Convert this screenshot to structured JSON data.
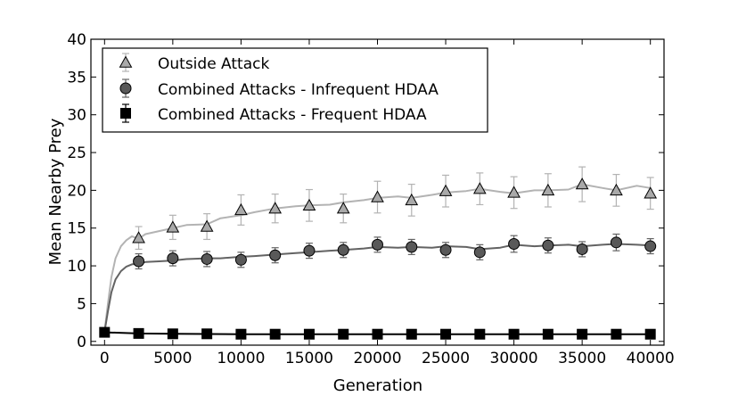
{
  "chart_data": {
    "type": "line",
    "xlabel": "Generation",
    "ylabel": "Mean Nearby Prey",
    "xlim": [
      -1000,
      41000
    ],
    "ylim": [
      -0.5,
      40
    ],
    "x_ticks": [
      0,
      5000,
      10000,
      15000,
      20000,
      25000,
      30000,
      35000,
      40000
    ],
    "y_ticks": [
      0,
      5,
      10,
      15,
      20,
      25,
      30,
      35,
      40
    ],
    "grid": false,
    "legend_position": "top-left",
    "series": [
      {
        "name": "Outside Attack",
        "marker": "triangle",
        "marker_color": "#a9a9a9",
        "line_color": "#b3b3b3",
        "curve": {
          "x": [
            0,
            250,
            500,
            800,
            1200,
            1600,
            2000,
            2500,
            3000,
            4000,
            5000,
            6000,
            7500,
            8500,
            10000,
            11000,
            12500,
            14000,
            15000,
            16500,
            17500,
            19000,
            20000,
            21500,
            22500,
            24000,
            25000,
            26500,
            27500,
            29000,
            30000,
            31500,
            32500,
            34000,
            35000,
            36500,
            37500,
            39000,
            40000
          ],
          "y": [
            1.3,
            5.0,
            8.5,
            11.0,
            12.6,
            13.4,
            13.9,
            13.6,
            14.2,
            14.6,
            15.0,
            15.4,
            15.5,
            16.3,
            16.7,
            17.1,
            17.6,
            17.9,
            18.0,
            18.1,
            18.4,
            18.7,
            19.0,
            19.2,
            19.0,
            19.4,
            19.7,
            19.9,
            20.2,
            19.8,
            19.6,
            20.0,
            20.0,
            20.1,
            20.8,
            20.3,
            20.0,
            20.6,
            20.3
          ]
        },
        "points": {
          "x": [
            2500,
            5000,
            7500,
            10000,
            12500,
            15000,
            17500,
            20000,
            22500,
            25000,
            27500,
            30000,
            32500,
            35000,
            37500,
            40000
          ],
          "y": [
            13.7,
            15.1,
            15.2,
            17.4,
            17.6,
            18.0,
            17.6,
            19.1,
            18.7,
            19.9,
            20.2,
            19.7,
            20.0,
            20.8,
            20.0,
            19.6
          ],
          "err": [
            1.5,
            1.6,
            1.7,
            2.0,
            1.9,
            2.1,
            1.9,
            2.1,
            2.1,
            2.1,
            2.1,
            2.1,
            2.2,
            2.3,
            2.1,
            2.1
          ]
        }
      },
      {
        "name": "Combined Attacks - Infrequent HDAA",
        "marker": "circle",
        "marker_color": "#595959",
        "line_color": "#636363",
        "curve": {
          "x": [
            0,
            250,
            500,
            800,
            1200,
            1600,
            2000,
            2500,
            3000,
            4000,
            5000,
            6000,
            7500,
            8500,
            10000,
            11000,
            12500,
            14000,
            15000,
            16500,
            17500,
            19000,
            20000,
            21500,
            22500,
            24000,
            25000,
            26500,
            27500,
            29000,
            30000,
            31500,
            32500,
            34000,
            35000,
            36500,
            37500,
            39000,
            40000
          ],
          "y": [
            1.3,
            4.0,
            6.5,
            8.2,
            9.3,
            9.9,
            10.2,
            10.3,
            10.5,
            10.6,
            10.7,
            10.9,
            11.0,
            11.0,
            11.2,
            11.3,
            11.5,
            11.7,
            11.8,
            12.0,
            12.1,
            12.3,
            12.5,
            12.4,
            12.5,
            12.4,
            12.6,
            12.5,
            12.2,
            12.4,
            12.8,
            12.6,
            12.7,
            12.8,
            12.6,
            12.8,
            12.9,
            12.8,
            12.7
          ]
        },
        "points": {
          "x": [
            2500,
            5000,
            7500,
            10000,
            12500,
            15000,
            17500,
            20000,
            22500,
            25000,
            27500,
            30000,
            32500,
            35000,
            37500,
            40000
          ],
          "y": [
            10.6,
            11.0,
            10.9,
            10.8,
            11.4,
            12.0,
            12.1,
            12.8,
            12.5,
            12.1,
            11.8,
            12.9,
            12.7,
            12.2,
            13.1,
            12.6
          ],
          "err": [
            1.0,
            1.0,
            1.0,
            1.0,
            1.0,
            1.0,
            1.0,
            1.0,
            1.0,
            1.0,
            1.0,
            1.1,
            1.0,
            1.0,
            1.1,
            1.0
          ]
        }
      },
      {
        "name": "Combined Attacks - Frequent HDAA",
        "marker": "square",
        "marker_color": "#000000",
        "line_color": "#000000",
        "curve": {
          "x": [
            0,
            2500,
            5000,
            10000,
            20000,
            30000,
            40000
          ],
          "y": [
            1.2,
            1.05,
            1.0,
            0.95,
            0.95,
            0.95,
            0.95
          ]
        },
        "points": {
          "x": [
            0,
            2500,
            5000,
            7500,
            10000,
            12500,
            15000,
            17500,
            20000,
            22500,
            25000,
            27500,
            30000,
            32500,
            35000,
            37500,
            40000
          ],
          "y": [
            1.2,
            1.05,
            1.0,
            1.0,
            0.95,
            0.95,
            0.95,
            0.95,
            0.95,
            0.95,
            0.95,
            0.95,
            0.95,
            0.95,
            0.95,
            0.95,
            0.95
          ],
          "err": [
            0.1,
            0.1,
            0.1,
            0.1,
            0.1,
            0.1,
            0.1,
            0.1,
            0.1,
            0.1,
            0.1,
            0.1,
            0.1,
            0.1,
            0.1,
            0.1,
            0.1
          ]
        }
      }
    ]
  }
}
